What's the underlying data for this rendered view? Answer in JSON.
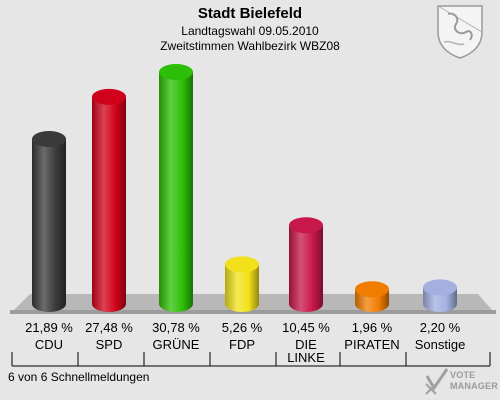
{
  "header": {
    "title": "Stadt Bielefeld",
    "subtitle": "Landtagswahl 09.05.2010",
    "district": "Zweitstimmen Wahlbezirk WBZ08"
  },
  "footer": {
    "status": "6 von 6 Schnellmeldungen"
  },
  "logo": {
    "line1": "VOTE",
    "line2": "MANAGER"
  },
  "chart_data": {
    "type": "bar",
    "title": "Stadt Bielefeld",
    "categories": [
      "CDU",
      "SPD",
      "GRÜNE",
      "FDP",
      "DIE LINKE",
      "PIRATEN",
      "Sonstige"
    ],
    "values": [
      21.89,
      27.48,
      30.78,
      5.26,
      10.45,
      1.96,
      2.2
    ],
    "value_labels": [
      "21,89 %",
      "27,48 %",
      "30,78 %",
      "5,26 %",
      "10,45 %",
      "1,96 %",
      "2,20 %"
    ],
    "colors": [
      "#3a3a3a",
      "#d0021b",
      "#2dbf07",
      "#f2e11a",
      "#c8174a",
      "#f07d00",
      "#a3b0e0"
    ],
    "ylim": [
      0,
      30.78
    ],
    "grid": false
  }
}
